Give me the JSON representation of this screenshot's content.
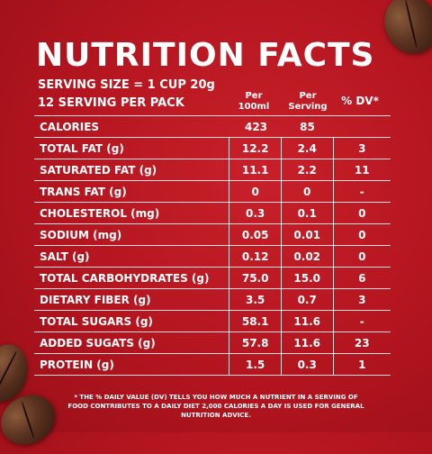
{
  "title": "NUTRITION FACTS",
  "serving_size": "SERVING SIZE = 1 CUP 20g",
  "servings_per_pack": "12 SERVING PER PACK",
  "columns": {
    "per_100": "Per 100ml",
    "per_serving": "Per Serving",
    "dv": "% DV*"
  },
  "rows": [
    {
      "label": "CALORIES",
      "per_100": "423",
      "per_serving": "85",
      "dv": ""
    },
    {
      "label": "TOTAL FAT (g)",
      "per_100": "12.2",
      "per_serving": "2.4",
      "dv": "3"
    },
    {
      "label": "SATURATED FAT (g)",
      "per_100": "11.1",
      "per_serving": "2.2",
      "dv": "11"
    },
    {
      "label": "TRANS FAT (g)",
      "per_100": "0",
      "per_serving": "0",
      "dv": "-"
    },
    {
      "label": "CHOLESTEROL (mg)",
      "per_100": "0.3",
      "per_serving": "0.1",
      "dv": "0"
    },
    {
      "label": "SODIUM (mg)",
      "per_100": "0.05",
      "per_serving": "0.01",
      "dv": "0"
    },
    {
      "label": "SALT (g)",
      "per_100": "0.12",
      "per_serving": "0.02",
      "dv": "0"
    },
    {
      "label": "TOTAL CARBOHYDRATES (g)",
      "per_100": "75.0",
      "per_serving": "15.0",
      "dv": "6"
    },
    {
      "label": "DIETARY FIBER (g)",
      "per_100": "3.5",
      "per_serving": "0.7",
      "dv": "3"
    },
    {
      "label": "TOTAL SUGARS (g)",
      "per_100": "58.1",
      "per_serving": "11.6",
      "dv": "-"
    },
    {
      "label": "ADDED SUGATS (g)",
      "per_100": "57.8",
      "per_serving": "11.6",
      "dv": "23"
    },
    {
      "label": "PROTEIN (g)",
      "per_100": "1.5",
      "per_serving": "0.3",
      "dv": "1"
    }
  ],
  "footnote": "* THE % DAILY VALUE (DV) TELLS YOU HOW MUCH A NUTRIENT IN A SERVING OF FOOD CONTRIBUTES TO A DAILY DIET 2,000 CALORIES A DAY IS USED FOR GENERAL NUTRITION ADVICE.",
  "colors": {
    "background": "#b3151f",
    "text": "#ffffff"
  }
}
